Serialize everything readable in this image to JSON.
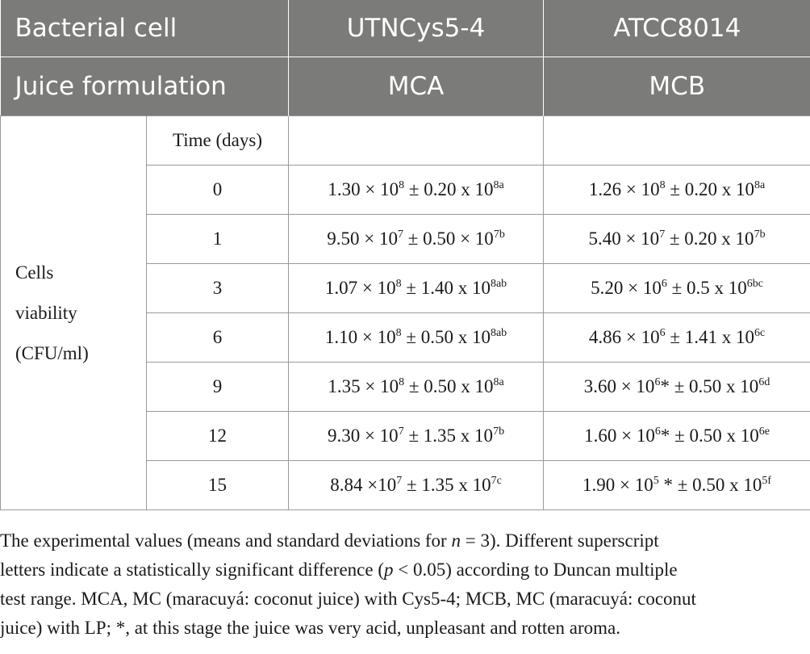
{
  "header": {
    "row1": {
      "label": "Bacterial cell",
      "col1": "UTNCys5-4",
      "col2": "ATCC8014"
    },
    "row2": {
      "label": "Juice formulation",
      "col1": "MCA",
      "col2": "MCB"
    }
  },
  "body": {
    "row_label_lines": [
      "Cells",
      "viability",
      "(CFU/ml)"
    ],
    "time_header": "Time (days)",
    "rows": [
      {
        "time": "0",
        "mca": {
          "main": "1.30 × 10",
          "exp": "8",
          "pm": " ± 0.20 x 10",
          "sup": "8a"
        },
        "mcb": {
          "main": "1.26 × 10",
          "exp": "8",
          "star": "",
          "pm": " ± 0.20 x 10",
          "sup": "8a"
        }
      },
      {
        "time": "1",
        "mca": {
          "main": "9.50 × 10",
          "exp": "7",
          "pm": " ± 0.50 × 10",
          "sup": "7b"
        },
        "mcb": {
          "main": "5.40 × 10",
          "exp": "7",
          "star": "",
          "pm": " ± 0.20 x 10",
          "sup": "7b"
        }
      },
      {
        "time": "3",
        "mca": {
          "main": "1.07 × 10",
          "exp": "8",
          "pm": " ± 1.40 x 10",
          "sup": "8ab"
        },
        "mcb": {
          "main": "5.20 × 10",
          "exp": "6",
          "star": "",
          "pm": " ± 0.5 x 10",
          "sup": "6bc"
        }
      },
      {
        "time": "6",
        "mca": {
          "main": "1.10 × 10",
          "exp": "8",
          "pm": " ± 0.50 x 10",
          "sup": "8ab"
        },
        "mcb": {
          "main": "4.86 × 10",
          "exp": "6",
          "star": "",
          "pm": " ± 1.41 x 10",
          "sup": "6c"
        }
      },
      {
        "time": "9",
        "mca": {
          "main": "1.35 × 10",
          "exp": "8",
          "pm": " ± 0.50 x 10",
          "sup": "8a"
        },
        "mcb": {
          "main": "3.60 × 10",
          "exp": "6",
          "star": "*",
          "pm": " ± 0.50 x 10",
          "sup": "6d"
        }
      },
      {
        "time": "12",
        "mca": {
          "main": "9.30 × 10",
          "exp": "7",
          "pm": " ± 1.35 x 10",
          "sup": "7b"
        },
        "mcb": {
          "main": "1.60 × 10",
          "exp": "6",
          "star": "*",
          "pm": " ± 0.50 x 10",
          "sup": "6e"
        }
      },
      {
        "time": "15",
        "mca": {
          "main": "8.84 ×10",
          "exp": "7",
          "pm": " ± 1.35 x 10",
          "sup": "7c"
        },
        "mcb": {
          "main": "1.90 × 10",
          "exp": "5",
          "star": " *",
          "pm": " ± 0.50 x 10",
          "sup": "5f"
        }
      }
    ]
  },
  "footnote": {
    "l1a": "The experimental values (means and standard deviations for ",
    "l1n": "n",
    "l1b": " = 3). Different superscript",
    "l2a": "letters indicate a statistically significant difference (",
    "l2p": "p",
    "l2b": " < 0.05) according to Duncan multiple",
    "l3": "test range. MCA, MC (maracuyá: coconut juice) with Cys5-4; MCB, MC (maracuyá: coconut",
    "l4": "juice) with LP; *, at this stage the juice was very acid, unpleasant and rotten aroma."
  }
}
